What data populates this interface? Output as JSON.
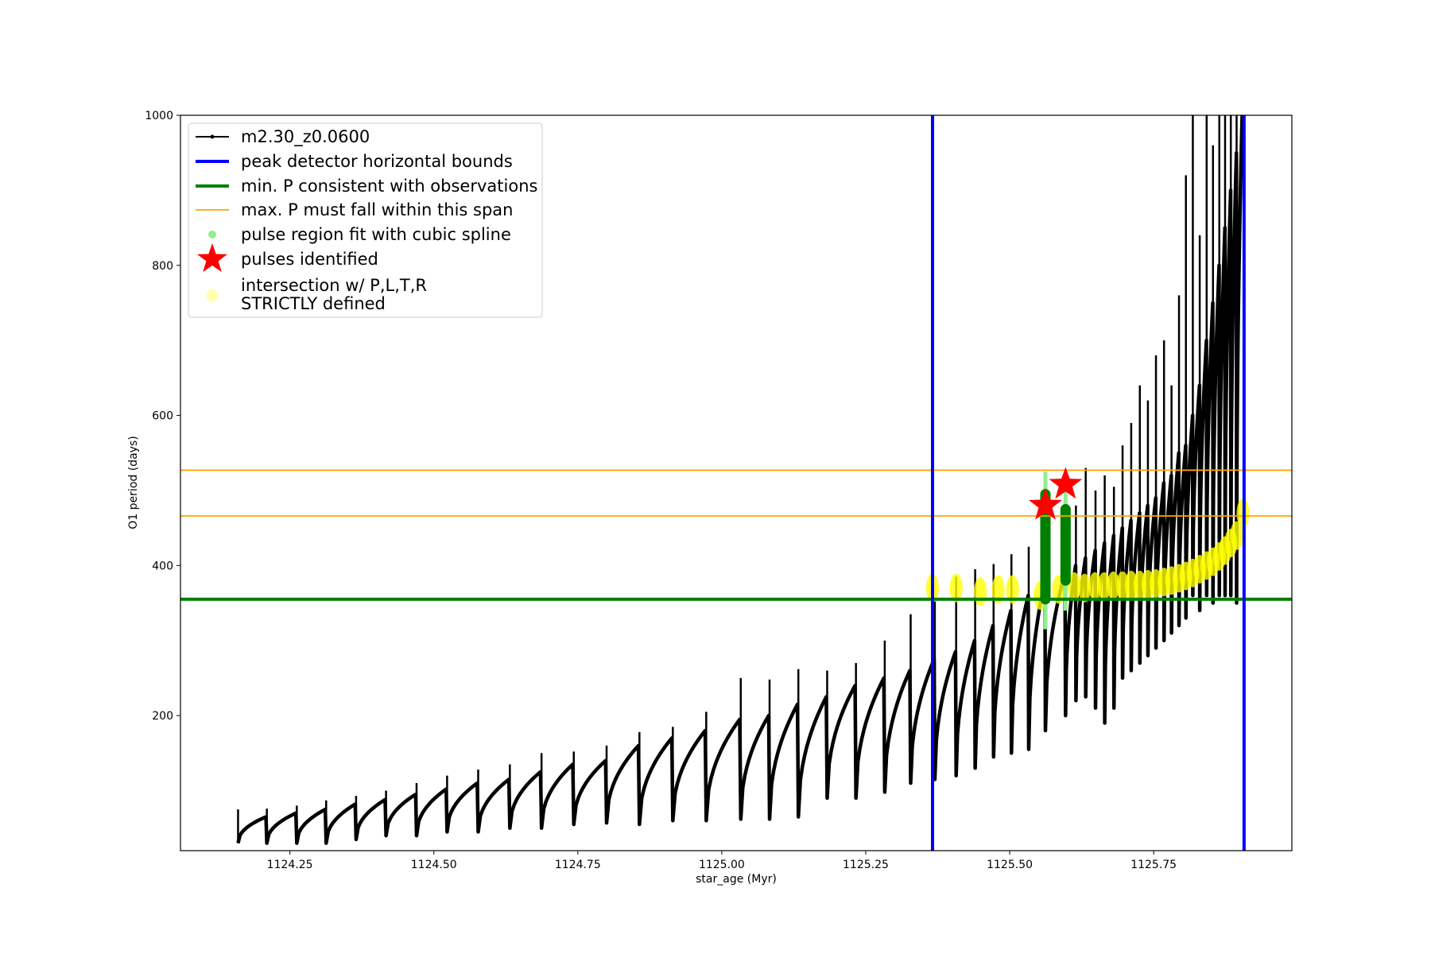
{
  "chart_data": {
    "type": "line",
    "xlabel": "star_age (Myr)",
    "ylabel": "O1 period (days)",
    "xlim": [
      1124.06,
      1125.99
    ],
    "ylim": [
      20,
      1000
    ],
    "xticks": [
      {
        "value": 1124.25,
        "label": "1124.25"
      },
      {
        "value": 1124.5,
        "label": "1124.50"
      },
      {
        "value": 1124.75,
        "label": "1124.75"
      },
      {
        "value": 1125.0,
        "label": "1125.00"
      },
      {
        "value": 1125.25,
        "label": "1125.25"
      },
      {
        "value": 1125.5,
        "label": "1125.50"
      },
      {
        "value": 1125.75,
        "label": "1125.75"
      }
    ],
    "yticks": [
      {
        "value": 200,
        "label": "200"
      },
      {
        "value": 400,
        "label": "400"
      },
      {
        "value": 600,
        "label": "600"
      },
      {
        "value": 800,
        "label": "800"
      },
      {
        "value": 1000,
        "label": "1000"
      }
    ],
    "grid": false,
    "legend_position": "top-left",
    "colors": {
      "series": "#000000",
      "bounds": "#0000ff",
      "min_p": "#008000",
      "max_p": "#ffa500",
      "spline": "#90ee90",
      "pulses": "#ff0000",
      "intersection": "#ffff00"
    },
    "series": {
      "name": "m2.30_z0.0600",
      "pulse_ages": [
        1124.16,
        1124.21,
        1124.262,
        1124.313,
        1124.365,
        1124.417,
        1124.47,
        1124.523,
        1124.577,
        1124.632,
        1124.687,
        1124.743,
        1124.8,
        1124.857,
        1124.915,
        1124.973,
        1125.033,
        1125.083,
        1125.133,
        1125.183,
        1125.233,
        1125.283,
        1125.328,
        1125.37,
        1125.407,
        1125.44,
        1125.472,
        1125.503,
        1125.533,
        1125.562,
        1125.597,
        1125.615,
        1125.632,
        1125.649,
        1125.665,
        1125.681,
        1125.696,
        1125.711,
        1125.726,
        1125.74,
        1125.754,
        1125.768,
        1125.781,
        1125.794,
        1125.806,
        1125.818,
        1125.83,
        1125.842,
        1125.853,
        1125.864,
        1125.874,
        1125.884,
        1125.894
      ],
      "pulse_peaks": [
        75,
        76,
        80,
        87,
        93,
        100,
        110,
        120,
        128,
        135,
        150,
        152,
        160,
        178,
        185,
        205,
        250,
        248,
        262,
        260,
        270,
        300,
        335,
        352,
        385,
        395,
        402,
        415,
        425,
        495,
        495,
        480,
        530,
        500,
        520,
        505,
        560,
        590,
        640,
        620,
        680,
        700,
        640,
        760,
        920,
        1000,
        840,
        1000,
        960,
        1000,
        1000,
        1000,
        1000
      ],
      "pulse_troughs": [
        30,
        30,
        30,
        30,
        35,
        40,
        40,
        45,
        45,
        50,
        50,
        55,
        57,
        55,
        60,
        60,
        62,
        62,
        65,
        90,
        90,
        98,
        110,
        115,
        120,
        130,
        145,
        150,
        155,
        180,
        200,
        220,
        225,
        210,
        190,
        210,
        250,
        260,
        270,
        280,
        290,
        300,
        310,
        320,
        330,
        360,
        340,
        360,
        350,
        360,
        360,
        360,
        350
      ],
      "pulse_top": [
        65,
        70,
        75,
        82,
        88,
        95,
        102,
        110,
        115,
        125,
        135,
        140,
        160,
        170,
        180,
        195,
        200,
        215,
        225,
        240,
        250,
        260,
        275,
        285,
        300,
        320,
        340,
        360,
        380,
        390,
        400,
        410,
        420,
        430,
        440,
        450,
        460,
        470,
        480,
        490,
        510,
        520,
        550,
        560,
        600,
        640,
        700,
        750,
        800,
        850,
        900,
        950,
        1000
      ]
    },
    "bounds_x": [
      1125.366,
      1125.907
    ],
    "min_p": 355,
    "max_p": [
      466,
      527
    ],
    "pulses": [
      {
        "x": 1125.562,
        "y": 480
      },
      {
        "x": 1125.597,
        "y": 508
      }
    ],
    "spline_regions": [
      {
        "x": 1125.562,
        "y_range": [
          315,
          525
        ]
      },
      {
        "x": 1125.597,
        "y_range": [
          340,
          505
        ]
      }
    ],
    "intersection_points": [
      {
        "x": 1125.366,
        "y": 370
      },
      {
        "x": 1125.407,
        "y": 370
      },
      {
        "x": 1125.449,
        "y": 365
      },
      {
        "x": 1125.48,
        "y": 368
      },
      {
        "x": 1125.505,
        "y": 368
      },
      {
        "x": 1125.553,
        "y": 360
      },
      {
        "x": 1125.585,
        "y": 368
      },
      {
        "x": 1125.612,
        "y": 372
      },
      {
        "x": 1125.63,
        "y": 370
      },
      {
        "x": 1125.648,
        "y": 372
      },
      {
        "x": 1125.664,
        "y": 372
      },
      {
        "x": 1125.68,
        "y": 373
      },
      {
        "x": 1125.696,
        "y": 373
      },
      {
        "x": 1125.711,
        "y": 374
      },
      {
        "x": 1125.726,
        "y": 374
      },
      {
        "x": 1125.74,
        "y": 375
      },
      {
        "x": 1125.754,
        "y": 376
      },
      {
        "x": 1125.768,
        "y": 378
      },
      {
        "x": 1125.781,
        "y": 380
      },
      {
        "x": 1125.794,
        "y": 383
      },
      {
        "x": 1125.806,
        "y": 386
      },
      {
        "x": 1125.818,
        "y": 390
      },
      {
        "x": 1125.83,
        "y": 395
      },
      {
        "x": 1125.842,
        "y": 400
      },
      {
        "x": 1125.853,
        "y": 405
      },
      {
        "x": 1125.864,
        "y": 412
      },
      {
        "x": 1125.874,
        "y": 420
      },
      {
        "x": 1125.884,
        "y": 430
      },
      {
        "x": 1125.894,
        "y": 440
      },
      {
        "x": 1125.905,
        "y": 470
      }
    ],
    "legend": [
      {
        "key": "series",
        "label": "m2.30_z0.0600"
      },
      {
        "key": "bounds",
        "label": "peak detector horizontal bounds"
      },
      {
        "key": "min_p",
        "label": "min. P consistent with observations"
      },
      {
        "key": "max_p",
        "label": "max. P must fall within this span"
      },
      {
        "key": "spline",
        "label": "pulse region fit with cubic spline"
      },
      {
        "key": "pulses",
        "label": "pulses identified"
      },
      {
        "key": "intersection",
        "label_line1": "intersection w/ P,L,T,R",
        "label_line2": "STRICTLY defined"
      }
    ]
  }
}
